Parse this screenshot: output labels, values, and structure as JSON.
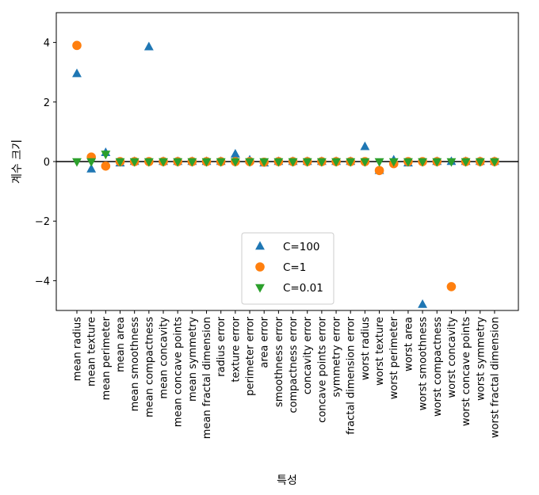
{
  "chart_data": {
    "type": "scatter",
    "xlabel": "특성",
    "ylabel": "계수 크기",
    "ylim": [
      -5,
      5
    ],
    "yticks": [
      -4,
      -2,
      0,
      2,
      4
    ],
    "ytick_labels": [
      "−4",
      "−2",
      "0",
      "2",
      "4"
    ],
    "grid": false,
    "legend_position": "lower-center",
    "categories": [
      "mean radius",
      "mean texture",
      "mean perimeter",
      "mean area",
      "mean smoothness",
      "mean compactness",
      "mean concavity",
      "mean concave points",
      "mean symmetry",
      "mean fractal dimension",
      "radius error",
      "texture error",
      "perimeter error",
      "area error",
      "smoothness error",
      "compactness error",
      "concavity error",
      "concave points error",
      "symmetry error",
      "fractal dimension error",
      "worst radius",
      "worst texture",
      "worst perimeter",
      "worst area",
      "worst smoothness",
      "worst compactness",
      "worst concavity",
      "worst concave points",
      "worst symmetry",
      "worst fractal dimension"
    ],
    "series": [
      {
        "name": "C=100",
        "marker": "triangle-up",
        "color": "#1f77b4",
        "values": [
          2.95,
          -0.25,
          0.3,
          -0.05,
          0.0,
          3.85,
          0.0,
          0.0,
          0.0,
          0.0,
          0.0,
          0.25,
          0.05,
          -0.05,
          0.0,
          0.0,
          0.0,
          0.0,
          0.0,
          0.0,
          0.5,
          -0.3,
          0.05,
          -0.05,
          -4.8,
          0.0,
          0.0,
          0.0,
          0.0,
          0.0
        ]
      },
      {
        "name": "C=1",
        "marker": "circle",
        "color": "#ff7f0e",
        "values": [
          3.9,
          0.15,
          -0.15,
          0.0,
          0.0,
          0.0,
          0.0,
          0.0,
          0.0,
          0.0,
          0.0,
          0.0,
          0.0,
          -0.02,
          0.0,
          0.0,
          0.0,
          0.0,
          0.0,
          0.0,
          0.0,
          -0.3,
          -0.07,
          0.0,
          0.0,
          0.0,
          -4.2,
          0.0,
          0.0,
          0.0
        ]
      },
      {
        "name": "C=0.01",
        "marker": "triangle-down",
        "color": "#2ca02c",
        "values": [
          0.0,
          0.0,
          0.25,
          0.0,
          0.0,
          0.0,
          0.0,
          0.0,
          0.0,
          0.0,
          0.0,
          0.0,
          0.0,
          0.0,
          0.0,
          0.0,
          0.0,
          0.0,
          0.0,
          0.0,
          0.0,
          0.0,
          0.0,
          0.0,
          0.0,
          0.0,
          0.0,
          0.0,
          0.0,
          0.0
        ]
      }
    ]
  }
}
